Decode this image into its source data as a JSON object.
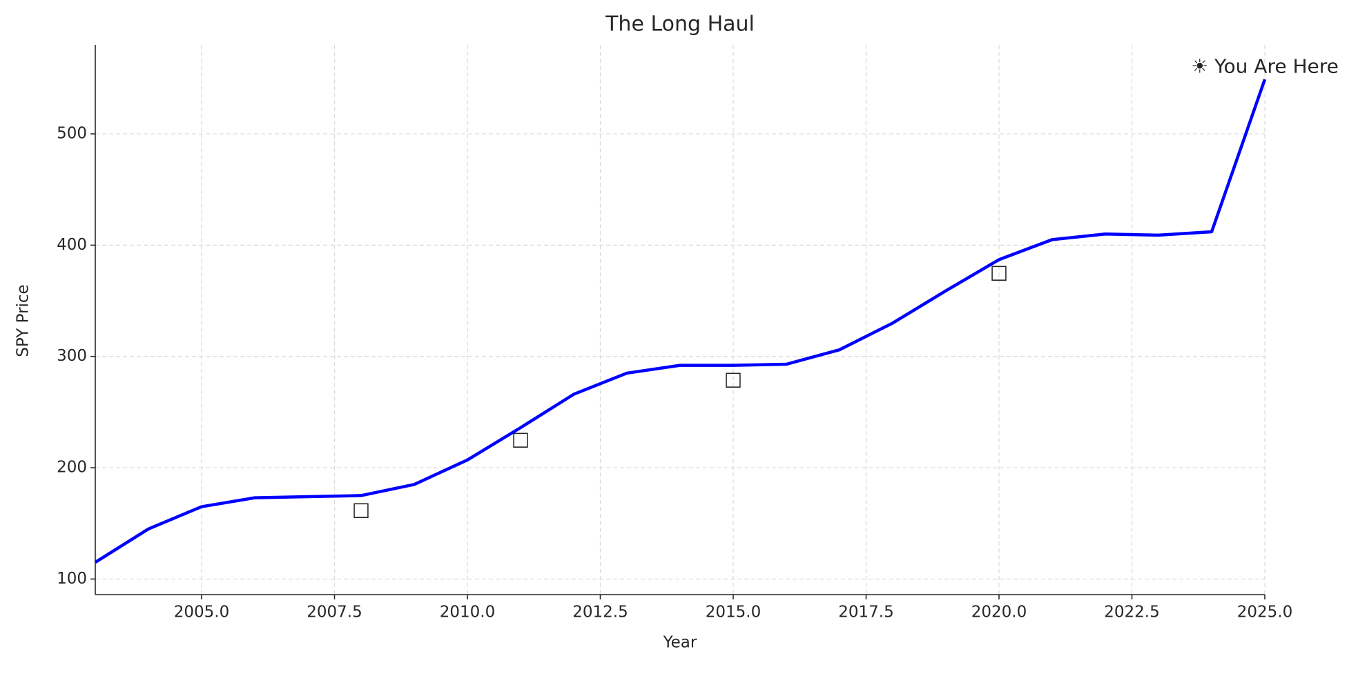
{
  "chart_data": {
    "type": "line",
    "title": "The Long Haul",
    "x_label": "Year",
    "y_label": "SPY Price",
    "x": [
      2003,
      2004,
      2005,
      2006,
      2007,
      2008,
      2009,
      2010,
      2011,
      2012,
      2013,
      2014,
      2015,
      2016,
      2017,
      2018,
      2019,
      2020,
      2021,
      2022,
      2023,
      2024,
      2025
    ],
    "values": [
      115,
      145,
      165,
      173,
      174,
      175,
      185,
      207,
      236,
      266,
      285,
      292,
      292,
      293,
      306,
      330,
      359,
      387,
      405,
      410,
      409,
      412,
      549
    ],
    "color": "#0000ff",
    "xlim": [
      2003,
      2025
    ],
    "ylim": [
      86,
      580
    ],
    "xticks": [
      {
        "value": 2005,
        "label": "2005.0"
      },
      2007.5,
      {
        "value": 2010,
        "label": "2010.0"
      },
      2012.5,
      {
        "value": 2015,
        "label": "2015.0"
      },
      2017.5,
      {
        "value": 2020,
        "label": "2020.0"
      },
      2022.5,
      {
        "value": 2025,
        "label": "2025.0"
      }
    ],
    "yticks": [
      100,
      200,
      300,
      400,
      500
    ],
    "grid": true,
    "annotations": [
      {
        "text": "□",
        "x": 2008,
        "y": 162
      },
      {
        "text": "□",
        "x": 2011,
        "y": 225
      },
      {
        "text": "□",
        "x": 2015,
        "y": 279
      },
      {
        "text": "□",
        "x": 2020,
        "y": 375
      },
      {
        "text": "☀ You Are Here",
        "x": 2025,
        "y": 560
      }
    ]
  }
}
